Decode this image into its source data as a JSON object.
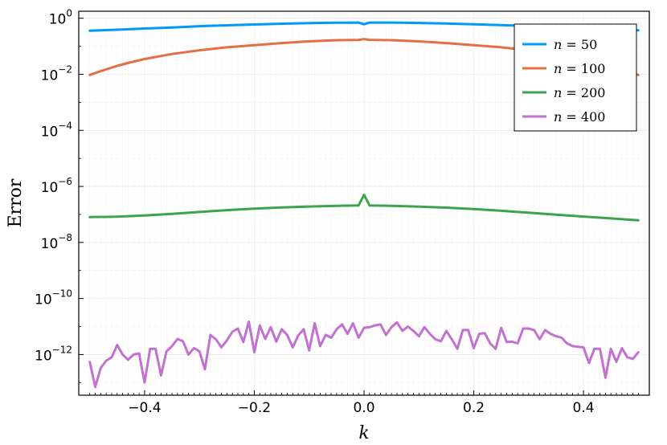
{
  "chart_data": {
    "type": "line",
    "xlabel": "k",
    "ylabel": "Error",
    "xlim": [
      -0.52,
      0.52
    ],
    "ylim_log10": [
      -13.45,
      0.25
    ],
    "yscale": "log",
    "grid": true,
    "legend_position": "top-right",
    "x_ticks": [
      -0.4,
      -0.2,
      0.0,
      0.2,
      0.4
    ],
    "x_tick_labels": [
      "−0.4",
      "−0.2",
      "0.0",
      "0.2",
      "0.4"
    ],
    "y_tick_exponents": [
      0,
      -2,
      -4,
      -6,
      -8,
      -10,
      -12
    ],
    "y_tick_labels": [
      {
        "base": "10",
        "exp": "0"
      },
      {
        "base": "10",
        "exp": "−2"
      },
      {
        "base": "10",
        "exp": "−4"
      },
      {
        "base": "10",
        "exp": "−6"
      },
      {
        "base": "10",
        "exp": "−8"
      },
      {
        "base": "10",
        "exp": "−10"
      },
      {
        "base": "10",
        "exp": "−12"
      }
    ],
    "series": [
      {
        "name": "n = 50",
        "legend_label": {
          "var": "n",
          "op": " = ",
          "num": "50"
        },
        "color": "#009AFA",
        "points": [
          [
            -0.5,
            0.36
          ],
          [
            -0.45,
            0.39
          ],
          [
            -0.4,
            0.43
          ],
          [
            -0.35,
            0.47
          ],
          [
            -0.3,
            0.52
          ],
          [
            -0.25,
            0.56
          ],
          [
            -0.2,
            0.6
          ],
          [
            -0.15,
            0.64
          ],
          [
            -0.1,
            0.67
          ],
          [
            -0.05,
            0.69
          ],
          [
            -0.01,
            0.7
          ],
          [
            0.0,
            0.61
          ],
          [
            0.01,
            0.7
          ],
          [
            0.05,
            0.7
          ],
          [
            0.1,
            0.68
          ],
          [
            0.15,
            0.65
          ],
          [
            0.2,
            0.61
          ],
          [
            0.25,
            0.57
          ],
          [
            0.3,
            0.53
          ],
          [
            0.35,
            0.48
          ],
          [
            0.4,
            0.44
          ],
          [
            0.45,
            0.4
          ],
          [
            0.5,
            0.37
          ]
        ]
      },
      {
        "name": "n = 100",
        "legend_label": {
          "var": "n",
          "op": " = ",
          "num": "100"
        },
        "color": "#E26F46",
        "points": [
          [
            -0.5,
            0.0095
          ],
          [
            -0.475,
            0.014
          ],
          [
            -0.45,
            0.02
          ],
          [
            -0.425,
            0.027
          ],
          [
            -0.4,
            0.035
          ],
          [
            -0.35,
            0.053
          ],
          [
            -0.3,
            0.072
          ],
          [
            -0.25,
            0.092
          ],
          [
            -0.2,
            0.11
          ],
          [
            -0.15,
            0.13
          ],
          [
            -0.1,
            0.15
          ],
          [
            -0.05,
            0.165
          ],
          [
            -0.01,
            0.17
          ],
          [
            0.0,
            0.18
          ],
          [
            0.01,
            0.17
          ],
          [
            0.05,
            0.165
          ],
          [
            0.1,
            0.15
          ],
          [
            0.15,
            0.13
          ],
          [
            0.2,
            0.11
          ],
          [
            0.25,
            0.092
          ],
          [
            0.3,
            0.072
          ],
          [
            0.35,
            0.053
          ],
          [
            0.4,
            0.035
          ],
          [
            0.425,
            0.027
          ],
          [
            0.45,
            0.02
          ],
          [
            0.475,
            0.014
          ],
          [
            0.5,
            0.0095
          ]
        ]
      },
      {
        "name": "n = 200",
        "legend_label": {
          "var": "n",
          "op": " = ",
          "num": "200"
        },
        "color": "#3DA44D",
        "points": [
          [
            -0.5,
            8e-08
          ],
          [
            -0.45,
            8.3e-08
          ],
          [
            -0.4,
            9.2e-08
          ],
          [
            -0.35,
            1.05e-07
          ],
          [
            -0.3,
            1.22e-07
          ],
          [
            -0.25,
            1.42e-07
          ],
          [
            -0.2,
            1.6e-07
          ],
          [
            -0.15,
            1.78e-07
          ],
          [
            -0.1,
            1.92e-07
          ],
          [
            -0.05,
            2.02e-07
          ],
          [
            -0.01,
            2.1e-07
          ],
          [
            0.0,
            5e-07
          ],
          [
            0.01,
            2.1e-07
          ],
          [
            0.05,
            2.02e-07
          ],
          [
            0.1,
            1.9e-07
          ],
          [
            0.15,
            1.75e-07
          ],
          [
            0.2,
            1.55e-07
          ],
          [
            0.25,
            1.35e-07
          ],
          [
            0.3,
            1.15e-07
          ],
          [
            0.35,
            9.8e-08
          ],
          [
            0.4,
            8.4e-08
          ],
          [
            0.45,
            7.2e-08
          ],
          [
            0.5,
            6.2e-08
          ]
        ]
      },
      {
        "name": "n = 400",
        "legend_label": {
          "var": "n",
          "op": " = ",
          "num": "400"
        },
        "color": "#C271D2",
        "points": [
          [
            -0.5,
            5.5e-13
          ],
          [
            -0.49,
            7e-14
          ],
          [
            -0.48,
            3.3e-13
          ],
          [
            -0.47,
            6e-13
          ],
          [
            -0.46,
            8e-13
          ],
          [
            -0.45,
            2.2e-12
          ],
          [
            -0.44,
            1e-12
          ],
          [
            -0.43,
            6.5e-13
          ],
          [
            -0.42,
            1e-12
          ],
          [
            -0.41,
            1.1e-12
          ],
          [
            -0.4,
            1e-13
          ],
          [
            -0.39,
            1.6e-12
          ],
          [
            -0.38,
            1.6e-12
          ],
          [
            -0.37,
            1.8e-13
          ],
          [
            -0.36,
            1.3e-12
          ],
          [
            -0.35,
            2e-12
          ],
          [
            -0.34,
            3.6e-12
          ],
          [
            -0.33,
            3e-12
          ],
          [
            -0.32,
            1e-12
          ],
          [
            -0.31,
            1.7e-12
          ],
          [
            -0.3,
            1.3e-12
          ],
          [
            -0.29,
            3e-13
          ],
          [
            -0.28,
            5e-12
          ],
          [
            -0.27,
            3.5e-12
          ],
          [
            -0.26,
            1.8e-12
          ],
          [
            -0.25,
            3.2e-12
          ],
          [
            -0.24,
            6.5e-12
          ],
          [
            -0.23,
            8.5e-12
          ],
          [
            -0.22,
            2.8e-12
          ],
          [
            -0.21,
            1.5e-11
          ],
          [
            -0.2,
            1.2e-12
          ],
          [
            -0.19,
            1.1e-11
          ],
          [
            -0.18,
            3.6e-12
          ],
          [
            -0.17,
            9.5e-12
          ],
          [
            -0.16,
            2.9e-12
          ],
          [
            -0.15,
            8e-12
          ],
          [
            -0.14,
            5e-12
          ],
          [
            -0.13,
            1.8e-12
          ],
          [
            -0.12,
            4.8e-12
          ],
          [
            -0.11,
            8e-12
          ],
          [
            -0.1,
            1.4e-12
          ],
          [
            -0.09,
            1.3e-11
          ],
          [
            -0.08,
            2e-12
          ],
          [
            -0.07,
            5e-12
          ],
          [
            -0.06,
            4e-12
          ],
          [
            -0.05,
            8e-12
          ],
          [
            -0.04,
            1.2e-11
          ],
          [
            -0.03,
            5.5e-12
          ],
          [
            -0.02,
            1.3e-11
          ],
          [
            -0.01,
            4e-12
          ],
          [
            0.0,
            9e-12
          ],
          [
            0.01,
            9.5e-12
          ],
          [
            0.02,
            1.1e-11
          ],
          [
            0.03,
            1.2e-11
          ],
          [
            0.04,
            5e-12
          ],
          [
            0.05,
            9.5e-12
          ],
          [
            0.06,
            1.4e-11
          ],
          [
            0.07,
            7e-12
          ],
          [
            0.08,
            1e-11
          ],
          [
            0.09,
            7e-12
          ],
          [
            0.1,
            4.5e-12
          ],
          [
            0.11,
            9.5e-12
          ],
          [
            0.12,
            5.5e-12
          ],
          [
            0.13,
            3.5e-12
          ],
          [
            0.14,
            3e-12
          ],
          [
            0.15,
            7e-12
          ],
          [
            0.16,
            3.5e-12
          ],
          [
            0.17,
            1.6e-12
          ],
          [
            0.18,
            7.5e-12
          ],
          [
            0.19,
            7.5e-12
          ],
          [
            0.2,
            1.7e-12
          ],
          [
            0.21,
            5.5e-12
          ],
          [
            0.22,
            5.8e-12
          ],
          [
            0.23,
            2.5e-12
          ],
          [
            0.24,
            1.6e-12
          ],
          [
            0.25,
            9e-12
          ],
          [
            0.26,
            2.8e-12
          ],
          [
            0.27,
            2.9e-12
          ],
          [
            0.28,
            2.5e-12
          ],
          [
            0.29,
            8.5e-12
          ],
          [
            0.3,
            8.5e-12
          ],
          [
            0.31,
            7.5e-12
          ],
          [
            0.32,
            3.5e-12
          ],
          [
            0.33,
            7.5e-12
          ],
          [
            0.34,
            5.5e-12
          ],
          [
            0.35,
            4.5e-12
          ],
          [
            0.36,
            4e-12
          ],
          [
            0.37,
            2.5e-12
          ],
          [
            0.38,
            2e-12
          ],
          [
            0.39,
            1.9e-12
          ],
          [
            0.4,
            1.8e-12
          ],
          [
            0.41,
            5e-13
          ],
          [
            0.42,
            1.6e-12
          ],
          [
            0.43,
            1.6e-12
          ],
          [
            0.44,
            1.5e-13
          ],
          [
            0.45,
            1.6e-12
          ],
          [
            0.46,
            5.5e-13
          ],
          [
            0.47,
            1.7e-12
          ],
          [
            0.48,
            8e-13
          ],
          [
            0.49,
            7e-13
          ],
          [
            0.5,
            1.2e-12
          ]
        ]
      }
    ]
  }
}
